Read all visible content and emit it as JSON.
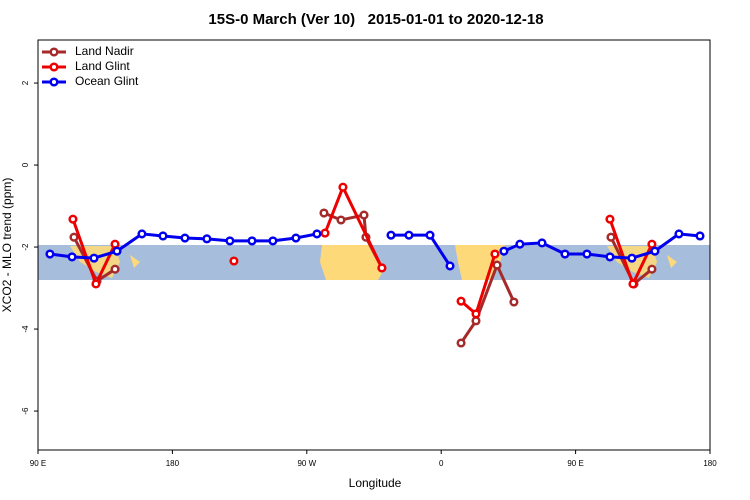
{
  "chart_data": {
    "type": "line",
    "title": "15S-0 March (Ver 10)   2015-01-01 to 2020-12-18",
    "x_label": "Longitude",
    "y_label": "XCO2 - MLO trend (ppm)",
    "xlim": [
      90,
      540
    ],
    "xticks": [
      {
        "value": 90,
        "label": "90 E"
      },
      180,
      {
        "value": 270,
        "label": "90 W"
      },
      {
        "value": 360,
        "label": "0"
      },
      {
        "value": 450,
        "label": "90 E"
      },
      {
        "value": 540,
        "label": "180"
      }
    ],
    "ylim": [
      -6.95,
      3.05
    ],
    "yticks": [
      -6,
      -4,
      -2,
      0,
      2
    ],
    "legend": "top-left",
    "series": [
      {
        "name": "Land Nadir",
        "color": "#a52a2a",
        "x": [
          114.1,
          129.5,
          141.6,
          null,
          281.5,
          292.9,
          308.3,
          309.6,
          320.3,
          null,
          373.3,
          383.3,
          397.4,
          408.7,
          null,
          473.7,
          489.1,
          501.1
        ],
        "values": [
          -1.76,
          -2.83,
          -2.54,
          null,
          -1.17,
          -1.34,
          -1.22,
          -1.76,
          -2.51,
          null,
          -4.34,
          -3.8,
          -2.44,
          -3.34,
          null,
          -1.76,
          -2.9,
          -2.54
        ]
      },
      {
        "name": "Land Glint",
        "color": "#ee0000",
        "x": [
          113.4,
          128.8,
          141.6,
          null,
          221.2,
          null,
          282.2,
          294.2,
          320.3,
          null,
          373.3,
          383.3,
          396.0,
          null,
          473.0,
          488.4,
          501.1
        ],
        "values": [
          -1.32,
          -2.9,
          -1.93,
          null,
          -2.34,
          null,
          -1.66,
          -0.54,
          -2.51,
          null,
          -3.32,
          -3.63,
          -2.17,
          null,
          -1.32,
          -2.9,
          -1.93
        ]
      },
      {
        "name": "Ocean Glint",
        "color": "#0000ee",
        "x": [
          98.0,
          112.8,
          127.5,
          142.9,
          159.6,
          173.7,
          188.4,
          203.1,
          218.5,
          233.3,
          247.3,
          262.7,
          276.8,
          null,
          326.4,
          338.4,
          352.5,
          365.9,
          null,
          402.0,
          412.7,
          427.5,
          442.9,
          457.6,
          473.0,
          487.7,
          503.1,
          519.2,
          533.3
        ],
        "values": [
          -2.17,
          -2.24,
          -2.27,
          -2.1,
          -1.68,
          -1.73,
          -1.78,
          -1.8,
          -1.85,
          -1.85,
          -1.85,
          -1.78,
          -1.68,
          null,
          -1.71,
          -1.71,
          -1.71,
          -2.46,
          null,
          -2.1,
          -1.93,
          -1.9,
          -2.17,
          -2.17,
          -2.24,
          -2.27,
          -2.1,
          -1.68,
          -1.73
        ]
      }
    ]
  }
}
